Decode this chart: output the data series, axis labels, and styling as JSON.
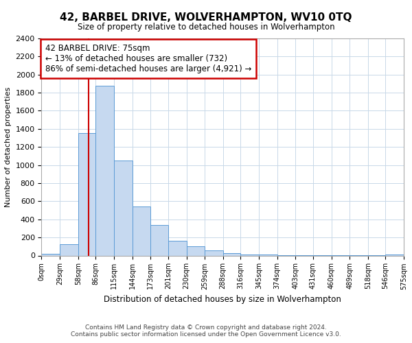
{
  "title": "42, BARBEL DRIVE, WOLVERHAMPTON, WV10 0TQ",
  "subtitle": "Size of property relative to detached houses in Wolverhampton",
  "xlabel": "Distribution of detached houses by size in Wolverhampton",
  "ylabel": "Number of detached properties",
  "footer_line1": "Contains HM Land Registry data © Crown copyright and database right 2024.",
  "footer_line2": "Contains public sector information licensed under the Open Government Licence v3.0.",
  "annotation_title": "42 BARBEL DRIVE: 75sqm",
  "annotation_line2": "← 13% of detached houses are smaller (732)",
  "annotation_line3": "86% of semi-detached houses are larger (4,921) →",
  "property_size": 75,
  "bar_color": "#c6d9f0",
  "bar_edge_color": "#5b9bd5",
  "vline_color": "#cc0000",
  "annotation_box_color": "#cc0000",
  "bin_edges": [
    0,
    29,
    58,
    86,
    115,
    144,
    173,
    201,
    230,
    259,
    288,
    316,
    345,
    374,
    403,
    431,
    460,
    489,
    518,
    546,
    575
  ],
  "bar_heights": [
    20,
    125,
    1350,
    1880,
    1050,
    545,
    335,
    165,
    105,
    60,
    30,
    15,
    10,
    5,
    3,
    2,
    2,
    2,
    2,
    8
  ],
  "ylim": [
    0,
    2400
  ],
  "yticks": [
    0,
    200,
    400,
    600,
    800,
    1000,
    1200,
    1400,
    1600,
    1800,
    2000,
    2200,
    2400
  ],
  "background_color": "#ffffff",
  "grid_color": "#c8d8e8"
}
